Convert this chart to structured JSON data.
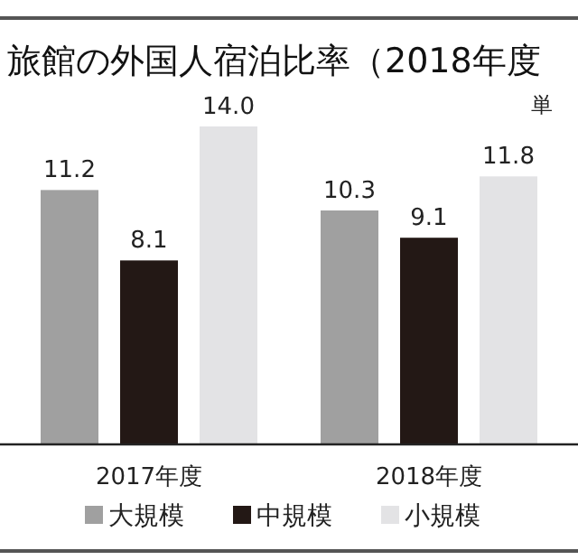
{
  "chart_data": {
    "type": "bar",
    "title": "旅館の外国人宿泊比率（2018年度",
    "categories": [
      "2017年度",
      "2018年度"
    ],
    "series": [
      {
        "name": "大規模",
        "color": "#a0a0a0",
        "values": [
          11.2,
          10.3
        ],
        "value_labels": [
          "11.2",
          "10.3"
        ]
      },
      {
        "name": "中規模",
        "color": "#231815",
        "values": [
          8.1,
          9.1
        ],
        "value_labels": [
          "8.1",
          "9.1"
        ]
      },
      {
        "name": "小規模",
        "color": "#e3e3e5",
        "values": [
          14.0,
          11.8
        ],
        "value_labels": [
          "14.0",
          "11.8"
        ]
      }
    ],
    "legend": "bottom",
    "annotations": [
      "単"
    ]
  }
}
